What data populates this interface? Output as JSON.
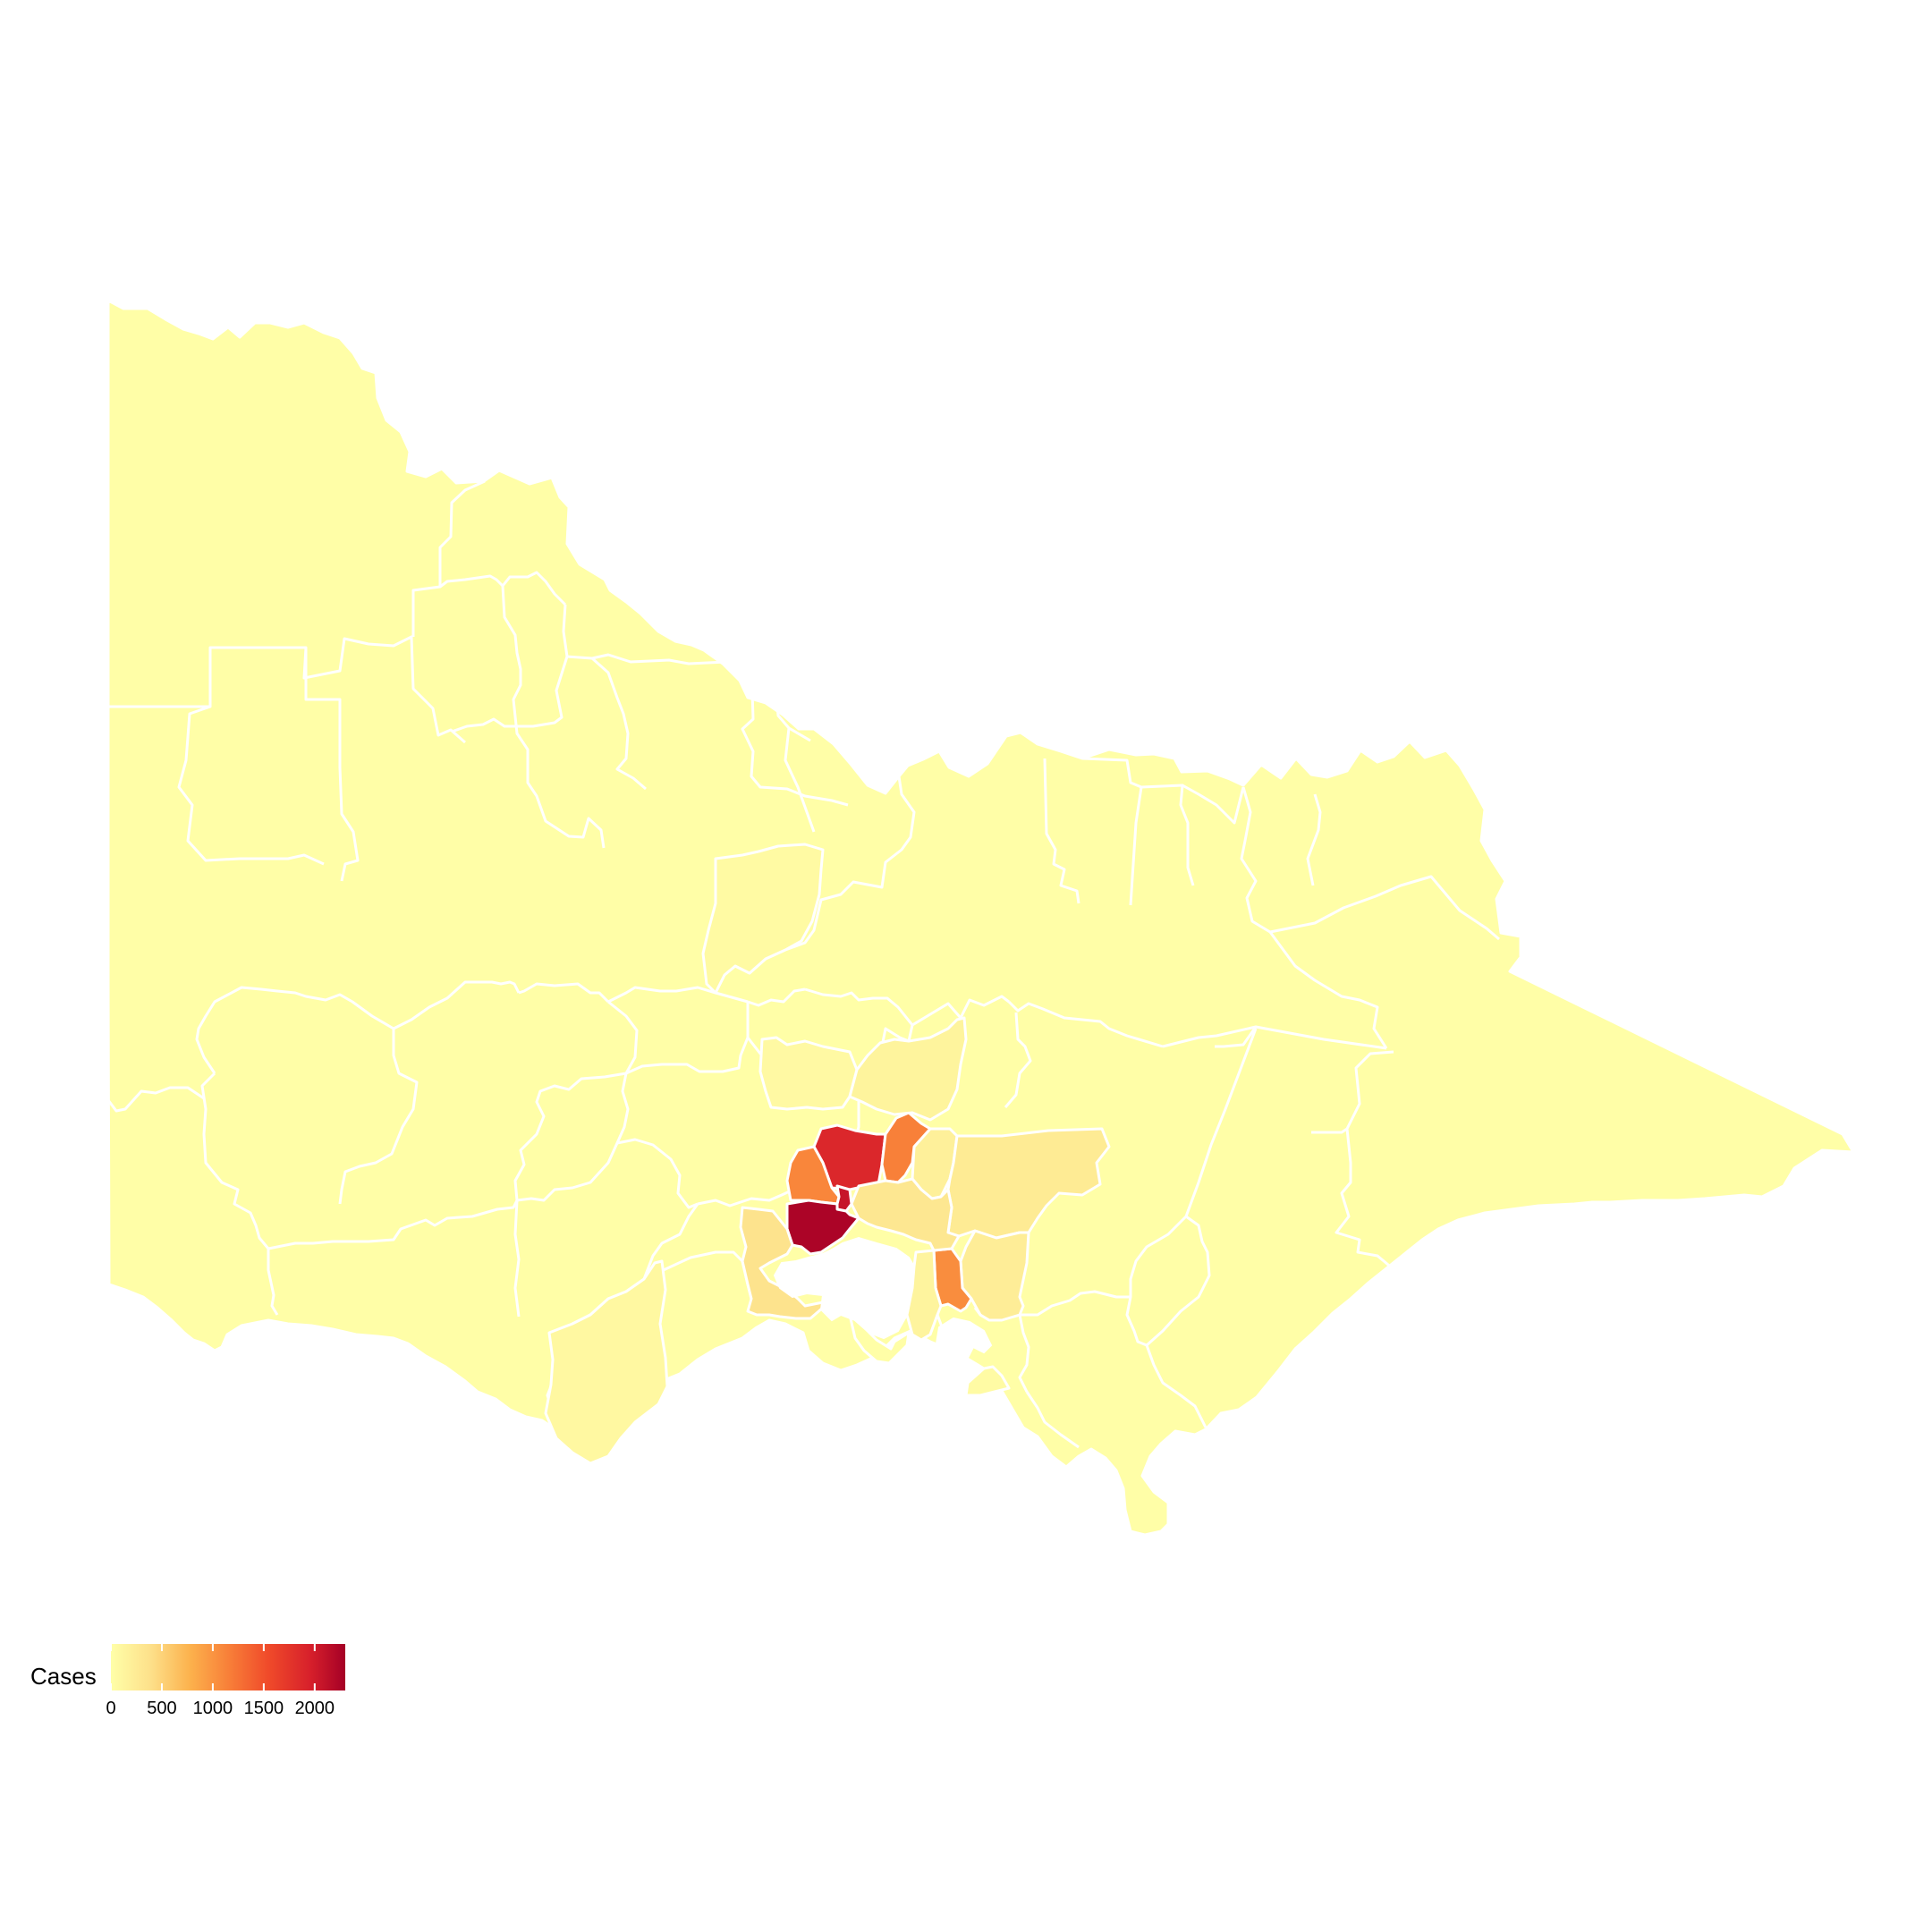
{
  "map": {
    "region": "Victoria LGAs",
    "border_color": "#ffffff"
  },
  "color_scale": {
    "stops": [
      "#ffffa8",
      "#fde08a",
      "#fcb14c",
      "#f88039",
      "#f04b2a",
      "#d7202b",
      "#a50026"
    ],
    "domain": [
      0,
      2300
    ]
  },
  "legend": {
    "title": "Cases",
    "ticks": [
      {
        "value": 0,
        "label": "0"
      },
      {
        "value": 500,
        "label": "500"
      },
      {
        "value": 1000,
        "label": "1000"
      },
      {
        "value": 1500,
        "label": "1500"
      },
      {
        "value": 2000,
        "label": "2000"
      }
    ]
  },
  "chart_data": {
    "type": "heatmap",
    "title": "",
    "value_label": "Cases",
    "range": [
      0,
      2300
    ],
    "regions": [
      {
        "id": "wyndham",
        "value": 2250
      },
      {
        "id": "hume",
        "value": 1850
      },
      {
        "id": "whittlesea",
        "value": 1150
      },
      {
        "id": "melton",
        "value": 1100
      },
      {
        "id": "casey",
        "value": 1050
      },
      {
        "id": "brimbank",
        "value": 2050
      },
      {
        "id": "greater-geelong",
        "value": 350
      },
      {
        "id": "yarra-ranges",
        "value": 250
      },
      {
        "id": "cardinia",
        "value": 220
      },
      {
        "id": "nillumbik",
        "value": 180
      },
      {
        "id": "mornington-peninsula",
        "value": 130
      },
      {
        "id": "mitchell",
        "value": 140
      },
      {
        "id": "macedon-ranges",
        "value": 70
      },
      {
        "id": "colac-otway",
        "value": 90
      },
      {
        "id": "strathbogie",
        "value": 60
      },
      {
        "id": "bass-coast",
        "value": 50
      },
      {
        "id": "rest-of-victoria",
        "value": 10
      }
    ]
  }
}
